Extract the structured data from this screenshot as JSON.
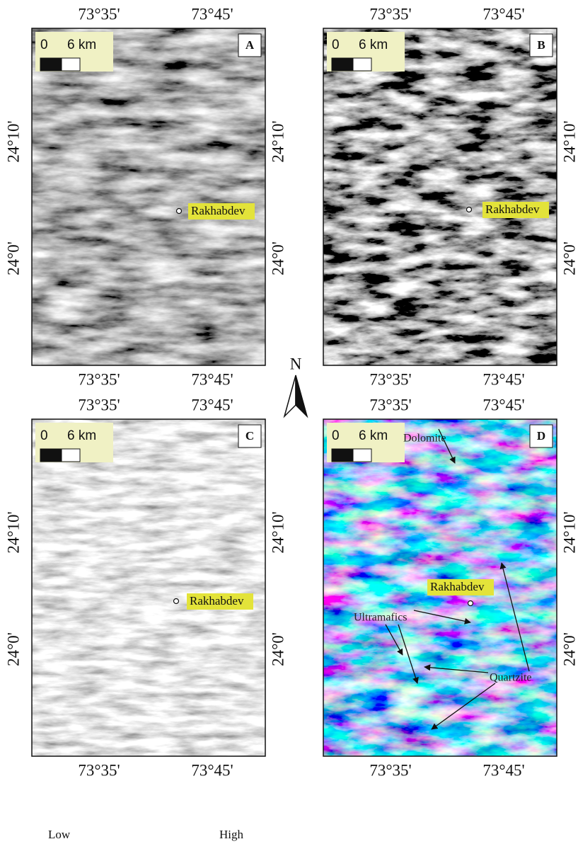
{
  "panels": [
    {
      "label": "A",
      "top_ticks": [
        "73°35'",
        "73°45'"
      ],
      "bottom_ticks": [
        "73°35'",
        "73°45'"
      ],
      "left_ticks": [
        "24°10'",
        "24°0'"
      ],
      "right_ticks": [
        "24°10'",
        "24°0'"
      ],
      "scale": {
        "start": "0",
        "end": "6 km"
      },
      "place": "Rakhabdev"
    },
    {
      "label": "B",
      "top_ticks": [
        "73°35'",
        "73°45'"
      ],
      "bottom_ticks": [
        "73°35'",
        "73°45'"
      ],
      "right_ticks": [
        "24°10'",
        "24°0'"
      ],
      "scale": {
        "start": "0",
        "end": "6 km"
      },
      "place": "Rakhabdev"
    },
    {
      "label": "C",
      "top_ticks": [
        "73°35'",
        "73°45'"
      ],
      "bottom_ticks": [
        "73°35'",
        "73°45'"
      ],
      "left_ticks": [
        "24°10'",
        "24°0'"
      ],
      "right_ticks": [
        "24°10'",
        "24°0'"
      ],
      "scale": {
        "start": "0",
        "end": "6 km"
      },
      "place": "Rakhabdev"
    },
    {
      "label": "D",
      "top_ticks": [
        "73°35'",
        "73°45'"
      ],
      "bottom_ticks": [
        "73°35'",
        "73°45'"
      ],
      "right_ticks": [
        "24°10'",
        "24°0'"
      ],
      "scale": {
        "start": "0",
        "end": "6 km"
      },
      "place": "Rakhabdev",
      "annotations": [
        "Dolomite",
        "Ultramafics",
        "Quartzite"
      ]
    }
  ],
  "north": "N",
  "legend": {
    "low": "Low",
    "high": "High"
  }
}
